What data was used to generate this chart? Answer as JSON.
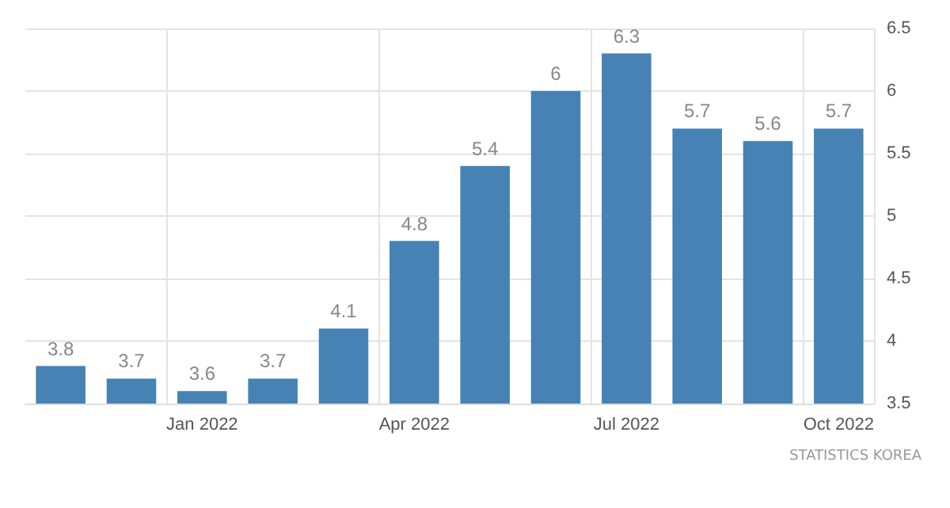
{
  "chart_data": {
    "type": "bar",
    "categories": [
      null,
      null,
      "Jan 2022",
      null,
      null,
      "Apr 2022",
      null,
      null,
      "Jul 2022",
      null,
      null,
      "Oct 2022"
    ],
    "values": [
      3.8,
      3.7,
      3.6,
      3.7,
      4.1,
      4.8,
      5.4,
      6,
      6.3,
      5.7,
      5.6,
      5.7
    ],
    "color": "#4682b4",
    "ylim": [
      3.5,
      6.5
    ],
    "yticks": [
      3.5,
      4,
      4.5,
      5,
      5.5,
      6,
      6.5
    ],
    "grid": true,
    "data_labels": true,
    "annotations": [
      "STATISTICS KOREA"
    ]
  }
}
